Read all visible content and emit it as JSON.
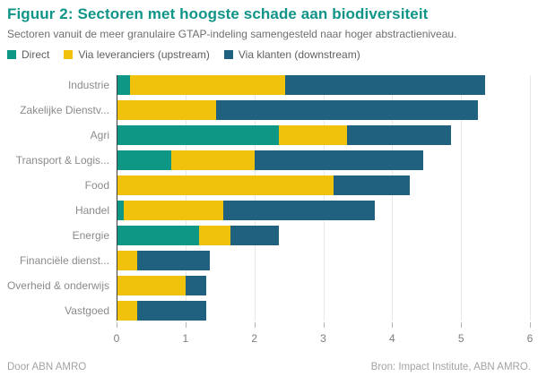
{
  "header": {
    "title": "Figuur 2: Sectoren met hoogste schade aan biodiversiteit",
    "subtitle": "Sectoren vanuit de meer granulaire GTAP-indeling samengesteld naar hoger abstractieniveau."
  },
  "footer": {
    "byline": "Door ABN AMRO",
    "source": "Bron: Impact Institute, ABN AMRO."
  },
  "colors": {
    "title": "#0f9488",
    "direct": "#0d9784",
    "upstream": "#f0c20c",
    "downstream": "#1f617e",
    "grid": "#e8e8e8",
    "axis_line": "#3f3f3f"
  },
  "chart_data": {
    "type": "bar",
    "orientation": "horizontal",
    "stacked": true,
    "title": "Figuur 2: Sectoren met hoogste schade aan biodiversiteit",
    "subtitle": "Sectoren vanuit de meer granulaire GTAP-indeling samengesteld naar hoger abstractieniveau.",
    "categories": [
      "Industrie",
      "Zakelijke Dienstv...",
      "Agri",
      "Transport & Logis...",
      "Food",
      "Handel",
      "Energie",
      "Financiële dienst...",
      "Overheid & onderwijs",
      "Vastgoed"
    ],
    "series": [
      {
        "name": "Direct",
        "color": "#0d9784",
        "values": [
          0.2,
          0,
          2.35,
          0.8,
          0,
          0.1,
          1.2,
          0,
          0,
          0
        ]
      },
      {
        "name": "Via leveranciers (upstream)",
        "color": "#f0c20c",
        "values": [
          2.25,
          1.45,
          1.0,
          1.2,
          3.15,
          1.45,
          0.45,
          0.3,
          1.0,
          0.3
        ]
      },
      {
        "name": "Via klanten (downstream)",
        "color": "#1f617e",
        "values": [
          2.9,
          3.8,
          1.5,
          2.45,
          1.1,
          2.2,
          0.7,
          1.05,
          0.3,
          1.0
        ]
      }
    ],
    "totals": [
      5.35,
      5.25,
      4.85,
      4.45,
      4.25,
      3.75,
      2.35,
      1.35,
      1.3,
      1.3
    ],
    "xlabel": "",
    "ylabel": "",
    "xlim": [
      0,
      6
    ],
    "xticks": [
      0,
      1,
      2,
      3,
      4,
      5,
      6
    ],
    "grid": "vertical",
    "legend_position": "top"
  }
}
